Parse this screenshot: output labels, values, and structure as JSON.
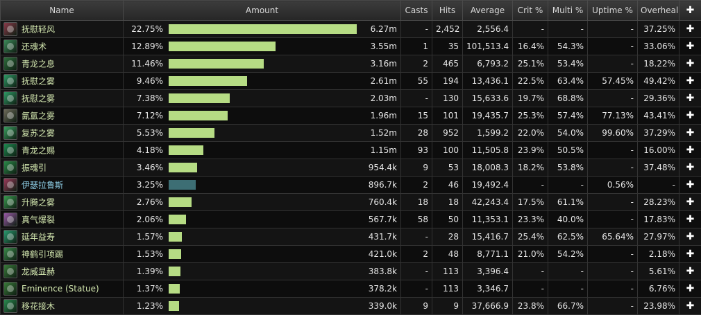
{
  "headers": {
    "name": "Name",
    "amount": "Amount",
    "casts": "Casts",
    "hits": "Hits",
    "average": "Average",
    "crit": "Crit %",
    "multi": "Multi %",
    "uptime": "Uptime %",
    "overheal": "Overheal",
    "expand": "✚"
  },
  "colors": {
    "bar": "#b6dc84",
    "pet_bar": "#3d6e74"
  },
  "rows": [
    {
      "name": "抚慰轻风",
      "icon": "soothing-breeze-icon",
      "icon_color": "#8a3a4a",
      "pct": "22.75%",
      "share": 0.2275,
      "amount": "6.27m",
      "casts": "-",
      "hits": "2,452",
      "average": "2,556.4",
      "crit": "-",
      "multi": "-",
      "uptime": "-",
      "overheal": "37.25%"
    },
    {
      "name": "还魂术",
      "icon": "revival-icon",
      "icon_color": "#3d8a5a",
      "pct": "12.89%",
      "share": 0.1289,
      "amount": "3.55m",
      "casts": "1",
      "hits": "35",
      "average": "101,513.4",
      "crit": "16.4%",
      "multi": "54.3%",
      "uptime": "-",
      "overheal": "33.06%"
    },
    {
      "name": "青龙之息",
      "icon": "dragon-breath-icon",
      "icon_color": "#2e6e3c",
      "pct": "11.46%",
      "share": 0.1146,
      "amount": "3.16m",
      "casts": "2",
      "hits": "465",
      "average": "6,793.2",
      "crit": "25.1%",
      "multi": "53.4%",
      "uptime": "-",
      "overheal": "18.22%"
    },
    {
      "name": "抚慰之雾",
      "icon": "soothing-mist-icon",
      "icon_color": "#2f9a66",
      "pct": "9.46%",
      "share": 0.0946,
      "amount": "2.61m",
      "casts": "55",
      "hits": "194",
      "average": "13,436.1",
      "crit": "22.5%",
      "multi": "63.4%",
      "uptime": "57.45%",
      "overheal": "49.42%"
    },
    {
      "name": "抚慰之雾",
      "icon": "soothing-mist-icon",
      "icon_color": "#2f9a66",
      "pct": "7.38%",
      "share": 0.0738,
      "amount": "2.03m",
      "casts": "-",
      "hits": "130",
      "average": "15,633.6",
      "crit": "19.7%",
      "multi": "68.8%",
      "uptime": "-",
      "overheal": "29.36%"
    },
    {
      "name": "氤氲之雾",
      "icon": "enveloping-mist-icon",
      "icon_color": "#6e6a5a",
      "pct": "7.12%",
      "share": 0.0712,
      "amount": "1.96m",
      "casts": "15",
      "hits": "101",
      "average": "19,435.7",
      "crit": "25.3%",
      "multi": "57.4%",
      "uptime": "77.13%",
      "overheal": "43.41%"
    },
    {
      "name": "复苏之雾",
      "icon": "renewing-mist-icon",
      "icon_color": "#3aa060",
      "pct": "5.53%",
      "share": 0.0553,
      "amount": "1.52m",
      "casts": "28",
      "hits": "952",
      "average": "1,599.2",
      "crit": "22.0%",
      "multi": "54.0%",
      "uptime": "99.60%",
      "overheal": "37.29%"
    },
    {
      "name": "青龙之赐",
      "icon": "jade-gift-icon",
      "icon_color": "#1e8a50",
      "pct": "4.18%",
      "share": 0.0418,
      "amount": "1.15m",
      "casts": "93",
      "hits": "100",
      "average": "11,505.8",
      "crit": "23.9%",
      "multi": "50.5%",
      "uptime": "-",
      "overheal": "16.00%"
    },
    {
      "name": "振魂引",
      "icon": "uplift-icon",
      "icon_color": "#2a8a48",
      "pct": "3.46%",
      "share": 0.0346,
      "amount": "954.4k",
      "casts": "9",
      "hits": "53",
      "average": "18,008.3",
      "crit": "18.2%",
      "multi": "53.8%",
      "uptime": "-",
      "overheal": "37.48%"
    },
    {
      "name": "伊瑟拉鲁斯",
      "icon": "ysera-icon",
      "icon_color": "#9a3a5a",
      "pet": true,
      "pct": "3.25%",
      "share": 0.0325,
      "amount": "896.7k",
      "casts": "2",
      "hits": "46",
      "average": "19,492.4",
      "crit": "-",
      "multi": "-",
      "uptime": "0.56%",
      "overheal": "-"
    },
    {
      "name": "升腾之雾",
      "icon": "surging-mist-icon",
      "icon_color": "#3a9a50",
      "pct": "2.76%",
      "share": 0.0276,
      "amount": "760.4k",
      "casts": "18",
      "hits": "18",
      "average": "42,243.4",
      "crit": "17.5%",
      "multi": "61.1%",
      "uptime": "-",
      "overheal": "28.23%"
    },
    {
      "name": "真气爆裂",
      "icon": "chi-burst-icon",
      "icon_color": "#9a5aa8",
      "pct": "2.06%",
      "share": 0.0206,
      "amount": "567.7k",
      "casts": "58",
      "hits": "50",
      "average": "11,353.1",
      "crit": "23.3%",
      "multi": "40.0%",
      "uptime": "-",
      "overheal": "17.83%"
    },
    {
      "name": "延年益寿",
      "icon": "life-cocoon-icon",
      "icon_color": "#2a9a70",
      "pct": "1.57%",
      "share": 0.0157,
      "amount": "431.7k",
      "casts": "-",
      "hits": "28",
      "average": "15,416.7",
      "crit": "25.4%",
      "multi": "62.5%",
      "uptime": "65.64%",
      "overheal": "27.97%"
    },
    {
      "name": "神鹤引项踢",
      "icon": "crane-kick-icon",
      "icon_color": "#3a8a4a",
      "pct": "1.53%",
      "share": 0.0153,
      "amount": "421.0k",
      "casts": "2",
      "hits": "48",
      "average": "8,771.1",
      "crit": "21.0%",
      "multi": "54.2%",
      "uptime": "-",
      "overheal": "2.18%"
    },
    {
      "name": "龙威显赫",
      "icon": "serpent-icon",
      "icon_color": "#3a7a3a",
      "pct": "1.39%",
      "share": 0.0139,
      "amount": "383.8k",
      "casts": "-",
      "hits": "113",
      "average": "3,396.4",
      "crit": "-",
      "multi": "-",
      "uptime": "-",
      "overheal": "5.61%"
    },
    {
      "name": "Eminence (Statue)",
      "icon": "serpent-icon",
      "icon_color": "#3a7a3a",
      "pct": "1.37%",
      "share": 0.0137,
      "amount": "378.2k",
      "casts": "-",
      "hits": "113",
      "average": "3,346.7",
      "crit": "-",
      "multi": "-",
      "uptime": "-",
      "overheal": "6.76%"
    },
    {
      "name": "移花接木",
      "icon": "expel-harm-icon",
      "icon_color": "#2a8a50",
      "pct": "1.23%",
      "share": 0.0123,
      "amount": "339.0k",
      "casts": "9",
      "hits": "9",
      "average": "37,666.9",
      "crit": "23.8%",
      "multi": "66.7%",
      "uptime": "-",
      "overheal": "23.98%"
    }
  ]
}
